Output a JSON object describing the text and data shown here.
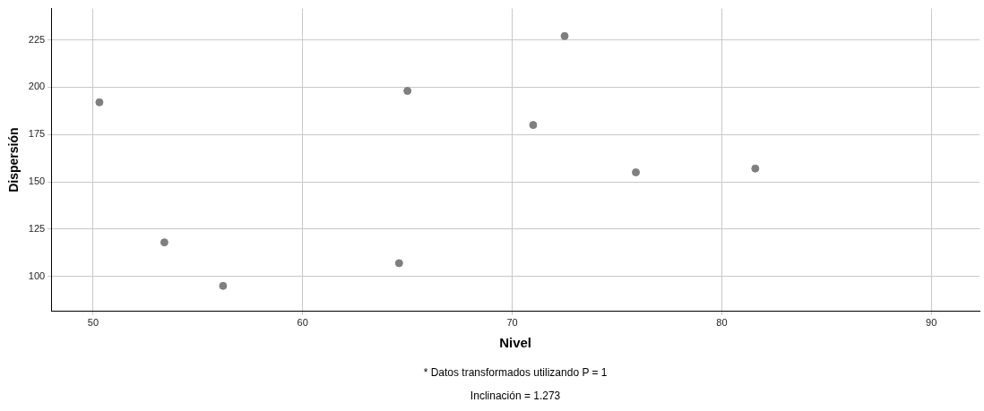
{
  "chart_data": {
    "type": "scatter",
    "xlabel": "Nivel",
    "ylabel": "Dispersión",
    "x": [
      50.3,
      53.4,
      56.2,
      64.6,
      65.0,
      71.0,
      72.5,
      75.9,
      81.6
    ],
    "values": [
      192,
      118,
      95,
      107,
      198,
      180,
      227,
      155,
      157
    ],
    "color": "#7f7f7f",
    "marker": "circle",
    "xlim": [
      48,
      92.3
    ],
    "xticks": [
      50,
      60,
      70,
      80,
      90
    ],
    "ylim": [
      81.5,
      241.5
    ],
    "yticks": [
      100,
      125,
      150,
      175,
      200,
      225
    ],
    "grid": true,
    "legend": false,
    "annotations": [
      "* Datos transformados utilizando P = 1",
      "Inclinación = 1.273"
    ]
  }
}
